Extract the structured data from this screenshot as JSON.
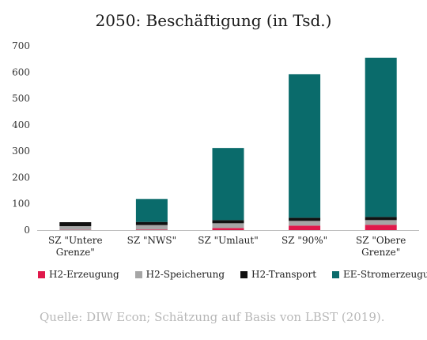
{
  "chart_data": {
    "type": "bar",
    "stacked": true,
    "title": "2050: Beschäftigung (in Tsd.)",
    "categories": [
      "SZ \"Untere Grenze\"",
      "SZ \"NWS\"",
      "SZ \"Umlaut\"",
      "SZ \"90%\"",
      "SZ \"Obere Grenze\""
    ],
    "category_lines": [
      [
        "SZ \"Untere",
        "Grenze\""
      ],
      [
        "SZ \"NWS\""
      ],
      [
        "SZ \"Umlaut\""
      ],
      [
        "SZ \"90%\""
      ],
      [
        "SZ \"Obere",
        "Grenze\""
      ]
    ],
    "series": [
      {
        "name": "H2-Erzeugung",
        "color": "#e0194b",
        "values": [
          1,
          2,
          8,
          17,
          20
        ]
      },
      {
        "name": "H2-Speicherung",
        "color": "#a6a6a6",
        "values": [
          14,
          17,
          18,
          18,
          18
        ]
      },
      {
        "name": "H2-Transport",
        "color": "#111111",
        "values": [
          15,
          12,
          12,
          12,
          12
        ]
      },
      {
        "name": "EE-Stromerzeugung",
        "color": "#0a6b6b",
        "values": [
          0,
          87,
          274,
          545,
          605
        ]
      }
    ],
    "ylim": [
      0,
      700
    ],
    "yticks": [
      0,
      100,
      200,
      300,
      400,
      500,
      600,
      700
    ],
    "grid": false,
    "legend_position": "bottom"
  },
  "source": "Quelle: DIW Econ; Schätzung auf Basis von LBST (2019)."
}
